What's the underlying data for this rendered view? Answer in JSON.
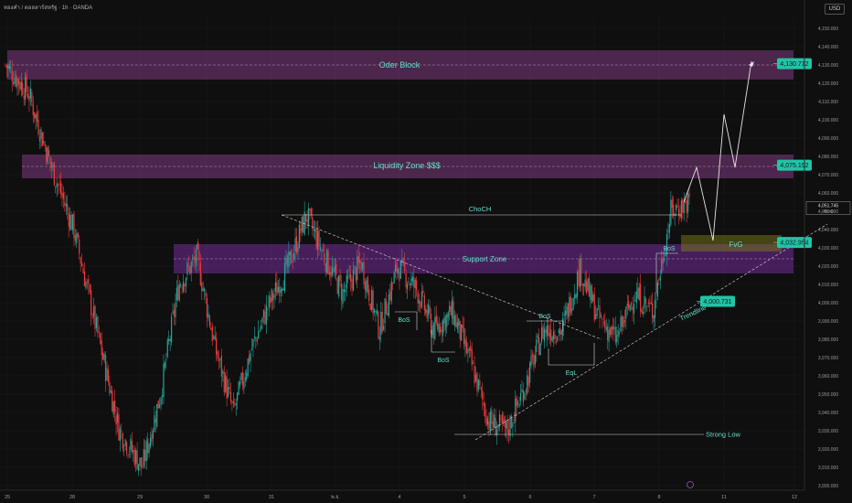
{
  "header": {
    "symbol_line": "ทองคำ / ดอลลาร์สหรัฐ · 1h · OANDA",
    "currency": "USD"
  },
  "chart_data": {
    "type": "candlestick",
    "title": "ทองคำ / ดอลลาร์สหรัฐ · 1h · OANDA",
    "ylim": [
      3900,
      4160
    ],
    "y_ticks": [
      3900,
      3910,
      3920,
      3930,
      3940,
      3950,
      3960,
      3970,
      3980,
      3990,
      4000,
      4010,
      4020,
      4030,
      4040,
      4050,
      4060,
      4070,
      4080,
      4090,
      4100,
      4110,
      4120,
      4130,
      4140,
      4150
    ],
    "y_tick_labels": [
      "3,900.000",
      "3,910.000",
      "3,920.000",
      "3,930.000",
      "3,940.000",
      "3,950.000",
      "3,960.000",
      "3,970.000",
      "3,980.000",
      "3,990.000",
      "4,000.000",
      "4,010.000",
      "4,020.000",
      "4,030.000",
      "4,040.000",
      "4,050.000",
      "4,060.000",
      "4,070.000",
      "4,080.000",
      "4,090.000",
      "4,100.000",
      "4,110.000",
      "4,120.000",
      "4,130.000",
      "4,140.000",
      "4,150.000"
    ],
    "x_ticks": [
      {
        "label": "25",
        "x": 25
      },
      {
        "label": "28",
        "x": 28
      },
      {
        "label": "29",
        "x": 29
      },
      {
        "label": "30",
        "x": 30
      },
      {
        "label": "31",
        "x": 31
      },
      {
        "label": "พ.ย.",
        "x": 32
      },
      {
        "label": "4",
        "x": 33
      },
      {
        "label": "5",
        "x": 34
      },
      {
        "label": "6",
        "x": 35
      },
      {
        "label": "7",
        "x": 36
      },
      {
        "label": "8",
        "x": 37
      },
      {
        "label": "11",
        "x": 38
      },
      {
        "label": "12",
        "x": 39
      }
    ],
    "up_color": "#26a69a",
    "down_color": "#ef3b3b",
    "path_points": [
      [
        0.0,
        4130
      ],
      [
        0.5,
        4115
      ],
      [
        1.0,
        4075
      ],
      [
        1.5,
        4040
      ],
      [
        2.0,
        3985
      ],
      [
        2.5,
        3930
      ],
      [
        3.0,
        3910
      ],
      [
        3.4,
        3950
      ],
      [
        3.8,
        4010
      ],
      [
        4.2,
        4025
      ],
      [
        4.6,
        3975
      ],
      [
        5.0,
        3940
      ],
      [
        5.4,
        3975
      ],
      [
        5.8,
        4000
      ],
      [
        6.2,
        4020
      ],
      [
        6.6,
        4048
      ],
      [
        7.0,
        4025
      ],
      [
        7.4,
        4005
      ],
      [
        7.8,
        4022
      ],
      [
        8.2,
        3985
      ],
      [
        8.6,
        4020
      ],
      [
        9.0,
        4008
      ],
      [
        9.4,
        3985
      ],
      [
        9.8,
        3995
      ],
      [
        10.2,
        3968
      ],
      [
        10.6,
        3935
      ],
      [
        11.0,
        3930
      ],
      [
        11.4,
        3955
      ],
      [
        11.8,
        3985
      ],
      [
        12.2,
        3985
      ],
      [
        12.6,
        4018
      ],
      [
        13.0,
        3992
      ],
      [
        13.4,
        3980
      ],
      [
        13.8,
        4005
      ],
      [
        14.2,
        3995
      ],
      [
        14.6,
        4050
      ],
      [
        15.0,
        4055
      ]
    ],
    "zones": [
      {
        "name": "Oder Block",
        "top": 4138,
        "bottom": 4122,
        "color": "#8a3d8a"
      },
      {
        "name": "Liquidity Zone $$$",
        "top": 4081,
        "bottom": 4068,
        "color": "#8a3d8a"
      },
      {
        "name": "Support Zone",
        "top": 4032,
        "bottom": 4016,
        "color": "#7e2fa5"
      },
      {
        "name": "FvG",
        "top": 4037,
        "bottom": 4028,
        "color": "#7a7a1c"
      }
    ],
    "price_labels": [
      {
        "text": "4,130.712",
        "value": 4130.712
      },
      {
        "text": "4,075.192",
        "value": 4075.192
      },
      {
        "text": "4,032.954",
        "value": 4032.954
      },
      {
        "text": "4,000.731",
        "value": 4000.731
      }
    ],
    "current_price": {
      "text": "4,051.745",
      "sub": "49:42",
      "value": 4051.745
    },
    "annotations": {
      "choch": "ChoCH",
      "bos_1": "BoS",
      "bos_2": "BoS",
      "bos_3": "BoS",
      "bos_4": "BoS",
      "eql": "EqL",
      "trendline": "Trendline",
      "strong_low": "Strong Low",
      "fvg": "FvG",
      "support": "Support Zone",
      "liquidity": "Liquidity Zone $$$",
      "oder_block": "Oder Block"
    },
    "levels": {
      "choch": 4048,
      "bos_1": 3995,
      "bos_2": 3973,
      "bos_3": 3990,
      "bos_4": 4027,
      "eql": 3966,
      "strong_low": 3928
    },
    "projection": [
      [
        4055,
        0
      ],
      [
        4074,
        1
      ],
      [
        4034,
        2
      ],
      [
        4103,
        3
      ],
      [
        4074,
        4
      ],
      [
        4132,
        5
      ]
    ]
  }
}
